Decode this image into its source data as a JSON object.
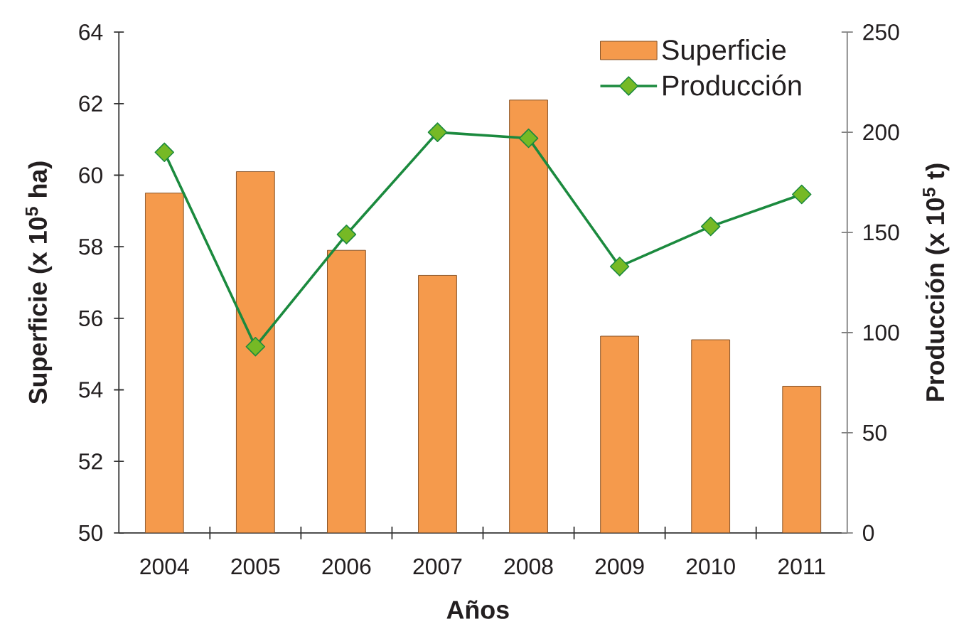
{
  "chart_data": {
    "type": "bar",
    "xlabel": "Años",
    "ylabel": "Superficie (x 10$^{5}$ ha)",
    "y2label": "Producción (x 10$^{5}$ t)",
    "categories": [
      "2004",
      "2005",
      "2006",
      "2007",
      "2008",
      "2009",
      "2010",
      "2011"
    ],
    "series": [
      {
        "name": "Superficie",
        "color": "#f59a4c",
        "values": [
          59.5,
          60.1,
          57.9,
          57.2,
          62.1,
          55.5,
          55.4,
          54.1
        ]
      },
      {
        "name": "Producción",
        "type": "line",
        "axis": "y2",
        "color": "#1b8a3e",
        "marker": "diamond",
        "values": [
          190,
          93,
          149,
          200,
          197,
          133,
          153,
          169
        ]
      }
    ],
    "ylim": [
      50,
      64
    ],
    "yticks": [
      50,
      52,
      54,
      56,
      58,
      60,
      62,
      64
    ],
    "y2lim": [
      0,
      250
    ],
    "y2ticks": [
      0,
      50,
      100,
      150,
      200,
      250
    ],
    "legend": "top right"
  }
}
